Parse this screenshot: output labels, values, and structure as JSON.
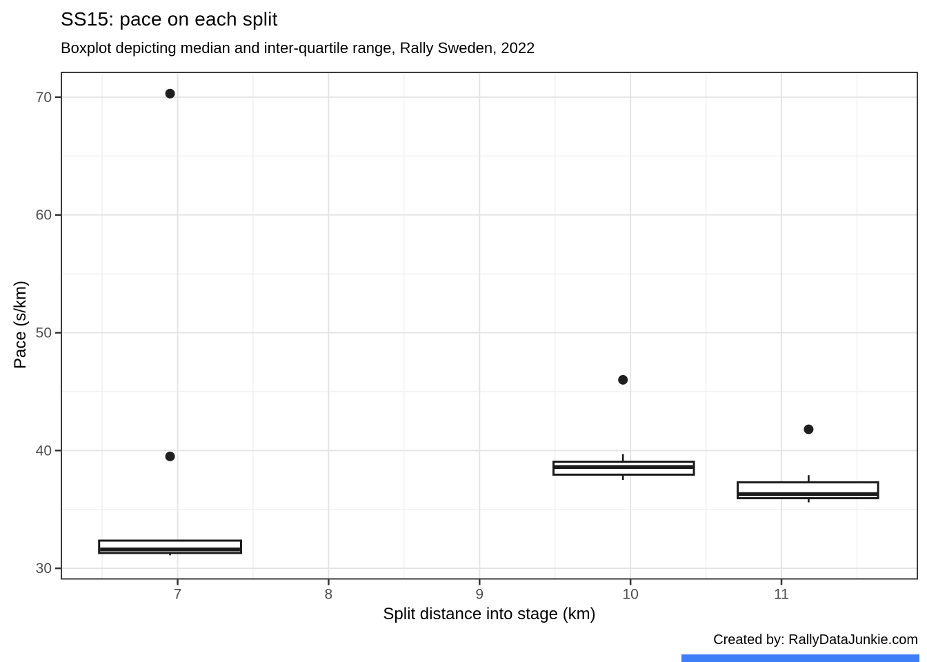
{
  "chart_data": {
    "type": "boxplot",
    "title": "SS15: pace on each split",
    "subtitle": "Boxplot depicting median and inter-quartile range, Rally Sweden, 2022",
    "caption": "Created by: RallyDataJunkie.com",
    "xlabel": "Split distance into stage (km)",
    "ylabel": "Pace (s/km)",
    "x_ticks": [
      7,
      8,
      9,
      10,
      11
    ],
    "x_minor_ticks": [
      6.5,
      7.5,
      8.5,
      9.5,
      10.5,
      11.5
    ],
    "y_ticks": [
      30,
      40,
      50,
      60,
      70
    ],
    "y_minor_ticks": [
      35,
      45,
      55,
      65
    ],
    "xlim": [
      6.23,
      11.9
    ],
    "ylim": [
      29.1,
      72.1
    ],
    "grid": true,
    "legend": "none",
    "boxes": [
      {
        "x": 6.95,
        "box_left": 6.48,
        "box_right": 7.42,
        "q1": 31.3,
        "median": 31.6,
        "q3": 32.35,
        "whisker_low": 31.1,
        "whisker_high": 32.35,
        "outliers": [
          39.5,
          70.3
        ]
      },
      {
        "x": 9.95,
        "box_left": 9.49,
        "box_right": 10.42,
        "q1": 37.95,
        "median": 38.6,
        "q3": 39.05,
        "whisker_low": 37.5,
        "whisker_high": 39.7,
        "outliers": [
          46.0
        ]
      },
      {
        "x": 11.18,
        "box_left": 10.71,
        "box_right": 11.64,
        "q1": 35.95,
        "median": 36.3,
        "q3": 37.3,
        "whisker_low": 35.6,
        "whisker_high": 37.9,
        "outliers": [
          41.8
        ]
      }
    ],
    "colors": {
      "box_stroke": "#1a1a1a",
      "box_fill": "#ffffff",
      "outlier": "#1f1f1f",
      "grid_major": "#e4e4e4",
      "grid_minor": "#f1f1f1",
      "panel_border": "#3c3c3c",
      "tick_mark": "#333333",
      "tick_label": "#4d4d4d",
      "panel_bg": "#ffffff"
    }
  },
  "accent_bar": {
    "color": "#3e7ef7"
  }
}
